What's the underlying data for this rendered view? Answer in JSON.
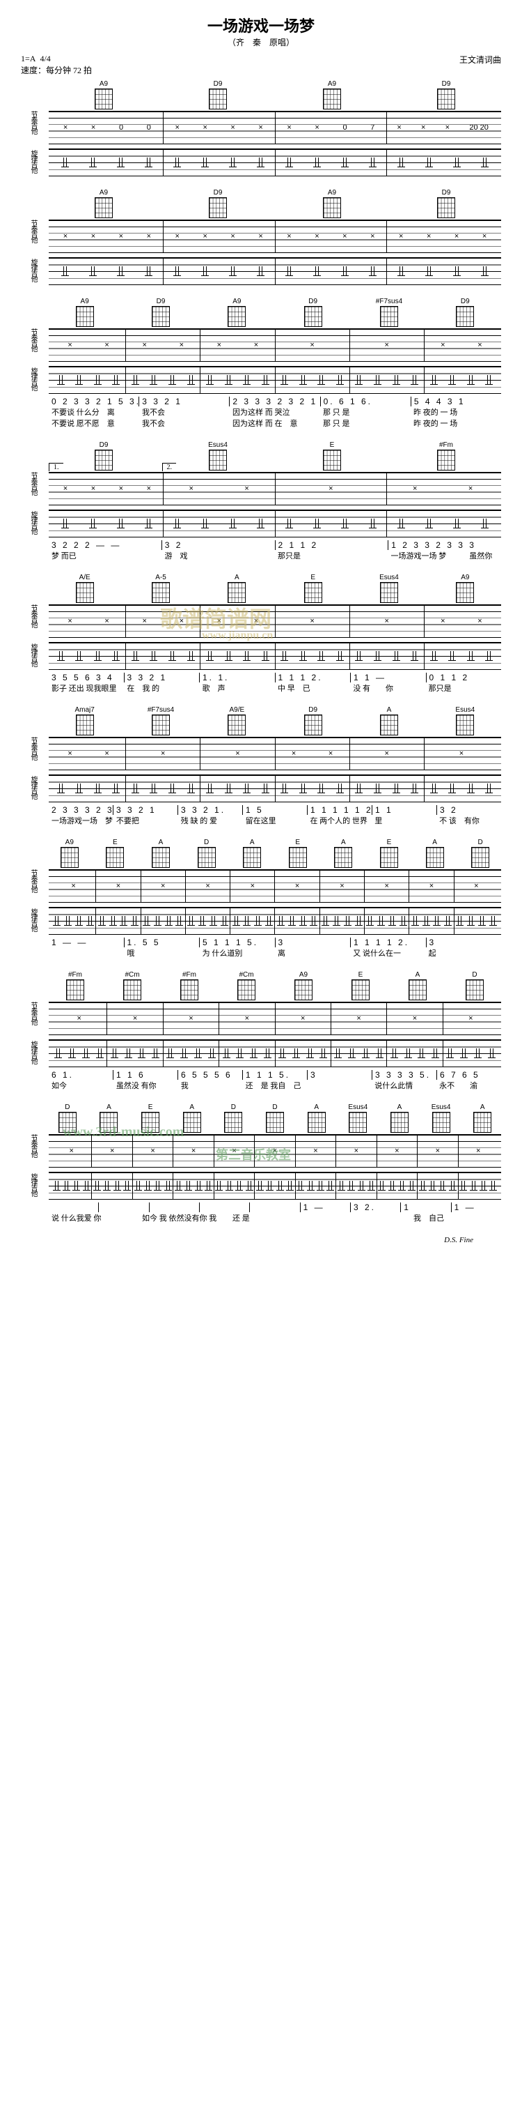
{
  "title": "一场游戏一场梦",
  "subtitle": "（齐　秦　原唱）",
  "key": "1=A",
  "timeSig": "4/4",
  "tempo": "速度：每分钟 72 拍",
  "composer": "王文清词曲",
  "rhythmLabel": "节奏吉他",
  "melodyLabel": "旋律吉他",
  "ending": "D.S. Fine",
  "watermark1": "歌谱简谱网",
  "watermark2": "www.jianpu.cn",
  "watermark3": "www.3rd-music.com",
  "watermark4": "第三音乐教室",
  "systems": [
    {
      "chords": [
        "A9",
        "D9",
        "A9",
        "D9"
      ],
      "tabMarks": [
        [
          "×",
          "×",
          "0",
          "0"
        ],
        [
          "×",
          "×",
          "×",
          "×"
        ],
        [
          "×",
          "×",
          "0",
          "7"
        ],
        [
          "×",
          "×",
          "×",
          "20 20"
        ]
      ],
      "nums": [],
      "lyrics": []
    },
    {
      "chords": [
        "A9",
        "D9",
        "A9",
        "D9"
      ],
      "tabMarks": [
        [
          "×",
          "×",
          "×",
          "×"
        ],
        [
          "×",
          "×",
          "×",
          "×"
        ],
        [
          "×",
          "×",
          "×",
          "×"
        ],
        [
          "×",
          "×",
          "×",
          "×"
        ]
      ],
      "nums": [],
      "lyrics": []
    },
    {
      "chords": [
        "A9",
        "D9",
        "A9",
        "D9",
        "#F7sus4",
        "D9"
      ],
      "tabMarks": [
        [
          "×",
          "×"
        ],
        [
          "×",
          "×"
        ],
        [
          "×",
          "×"
        ],
        [
          "×"
        ],
        [
          "×"
        ],
        [
          "×",
          "×"
        ]
      ],
      "nums": [
        "0 2 3 3  2 1 5 3.",
        "3 3 2 1",
        "2 3 3 3  2 3 2 1",
        "0. 6 1 6.",
        "5 4 4 3 1"
      ],
      "lyrics": [
        "不要谈 什么分　离",
        "我不会",
        "因为这样 而 哭泣",
        "那 只 是",
        "昨 夜的 一 场"
      ],
      "lyrics2": [
        "不要说 愿不愿　意",
        "我不会",
        "因为这样 而 在　意",
        "那 只 是",
        "昨 夜的 一 场"
      ]
    },
    {
      "chords": [
        "D9",
        "Esus4",
        "E",
        "#Fm"
      ],
      "volta": [
        "1.",
        "2."
      ],
      "tabMarks": [
        [
          "×",
          "×",
          "×",
          "×"
        ],
        [
          "×",
          "×"
        ],
        [
          "×"
        ],
        [
          "×",
          "×"
        ]
      ],
      "nums": [
        "3 2 2 2  —  —",
        "3 2",
        "2 1 1 2",
        "1 2 3 3  2 3 3 3"
      ],
      "lyrics": [
        "梦 而已",
        "游　戏",
        "那只是",
        "一场游戏一场 梦　　　虽然你"
      ]
    },
    {
      "chords": [
        "A/E",
        "A-5",
        "A",
        "E",
        "Esus4",
        "A9"
      ],
      "tabMarks": [
        [
          "×",
          "×"
        ],
        [
          "×",
          "×"
        ],
        [
          "×",
          "×"
        ],
        [
          "×"
        ],
        [
          "×"
        ],
        [
          "×",
          "×"
        ]
      ],
      "nums": [
        "3 5 5 6  3 4",
        "3 3 2 1",
        "1. 1.",
        "1 1 1 2.",
        "1 1 —",
        "0 1 1 2"
      ],
      "lyrics": [
        "影子 还出 现我眼里",
        "在　我 的",
        "歌　声",
        "中 早　已",
        "没 有　　你",
        "那只是"
      ]
    },
    {
      "chords": [
        "Amaj7",
        "#F7sus4",
        "A9/E",
        "D9",
        "A",
        "Esus4"
      ],
      "tabMarks": [
        [
          "×",
          "×"
        ],
        [
          "×"
        ],
        [
          "×"
        ],
        [
          "×",
          "×"
        ],
        [
          "×"
        ],
        [
          "×"
        ]
      ],
      "nums": [
        "2 3 3 3  2 3  3 3",
        "3 3 2 1",
        "3 3 2 1.",
        "1 5",
        "1 1 1 1  1 2.",
        "1 1",
        "3 2"
      ],
      "lyrics": [
        "一场游戏一场　梦",
        "不要把",
        "残 缺 的 爱",
        "留在这里",
        "在 两个人的 世界",
        "里",
        "不 该　有你"
      ]
    },
    {
      "chords": [
        "A9",
        "E",
        "A",
        "D",
        "A",
        "E",
        "A",
        "E",
        "A",
        "D"
      ],
      "tabMarks": [
        [
          "×"
        ],
        [
          "×"
        ],
        [
          "×"
        ],
        [
          "×"
        ],
        [
          "×"
        ],
        [
          "×"
        ],
        [
          "×"
        ],
        [
          "×"
        ],
        [
          "×"
        ],
        [
          "×"
        ]
      ],
      "nums": [
        "1 —  —",
        "1.  5 5",
        "5 1 1 1 5.",
        "3",
        "1 1 1 1 2.",
        "3"
      ],
      "lyrics": [
        "",
        "哦",
        "为 什么道别",
        "离",
        "又 说什么在一",
        "起"
      ]
    },
    {
      "chords": [
        "#Fm",
        "#Cm",
        "#Fm",
        "#Cm",
        "A9",
        "E",
        "A",
        "D"
      ],
      "tabMarks": [
        [
          "×"
        ],
        [
          "×"
        ],
        [
          "×"
        ],
        [
          "×"
        ],
        [
          "×"
        ],
        [
          "×"
        ],
        [
          "×"
        ],
        [
          "×"
        ]
      ],
      "nums": [
        "6 1.",
        "1 1 6",
        "6 5 5 5 6",
        "1 1  1 5.",
        "3",
        "3 3 3 3 5.",
        "6 7 6 5"
      ],
      "lyrics": [
        "如今",
        "虽然没 有你",
        "我",
        "还　是 我自　己",
        "",
        "说什么此情",
        "永不　　渝"
      ]
    },
    {
      "chords": [
        "D",
        "A",
        "E",
        "A",
        "D",
        "D",
        "A",
        "Esus4",
        "A",
        "Esus4",
        "A"
      ],
      "tabMarks": [
        [
          "×"
        ],
        [
          "×"
        ],
        [
          "×"
        ],
        [
          "×"
        ],
        [
          "×"
        ],
        [
          "×"
        ],
        [
          "×"
        ],
        [
          "×"
        ],
        [
          "×"
        ],
        [
          "×"
        ],
        [
          "×"
        ]
      ],
      "nums": [
        "",
        "",
        "",
        "",
        "",
        "1 —",
        "3 2.",
        "1",
        "1 —"
      ],
      "lyrics": [
        "说 什么我爱 你",
        "如今 我 依然没有你 我",
        "还 是",
        "",
        "我　自己"
      ]
    }
  ]
}
